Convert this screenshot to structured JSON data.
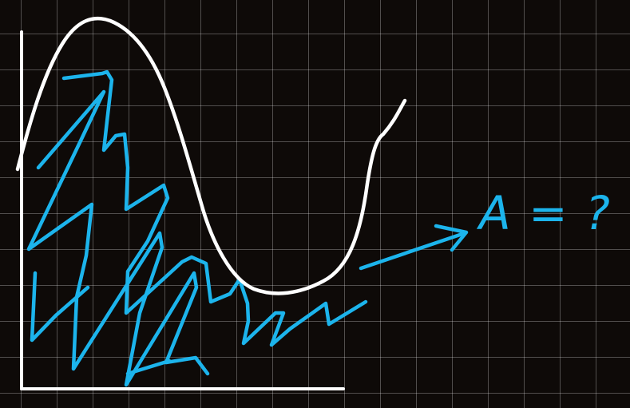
{
  "annotation": {
    "text": "A = ?"
  },
  "colors": {
    "background": "#0e0a08",
    "grid": "#5a5552",
    "curve": "#ffffff",
    "axes": "#ffffff",
    "shading": "#1cb4ec",
    "annotation": "#1cb4ec"
  }
}
